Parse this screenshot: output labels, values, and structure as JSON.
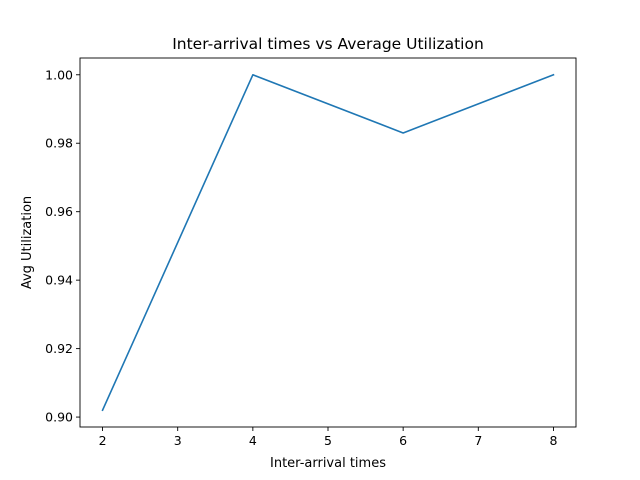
{
  "chart_data": {
    "type": "line",
    "title": "Inter-arrival times vs Average Utilization",
    "xlabel": "Inter-arrival times",
    "ylabel": "Avg Utilization",
    "x_ticks": [
      "2",
      "3",
      "4",
      "5",
      "6",
      "7",
      "8"
    ],
    "y_ticks": [
      "0.90",
      "0.92",
      "0.94",
      "0.96",
      "0.98",
      "1.00"
    ],
    "xlim": [
      1.7,
      8.3
    ],
    "ylim": [
      0.8971,
      1.0049
    ],
    "grid": false,
    "series": [
      {
        "color": "#1f77b4",
        "points": [
          {
            "x": 2,
            "y": 0.902
          },
          {
            "x": 4,
            "y": 1.0
          },
          {
            "x": 6,
            "y": 0.983
          },
          {
            "x": 8,
            "y": 1.0
          }
        ]
      }
    ]
  }
}
